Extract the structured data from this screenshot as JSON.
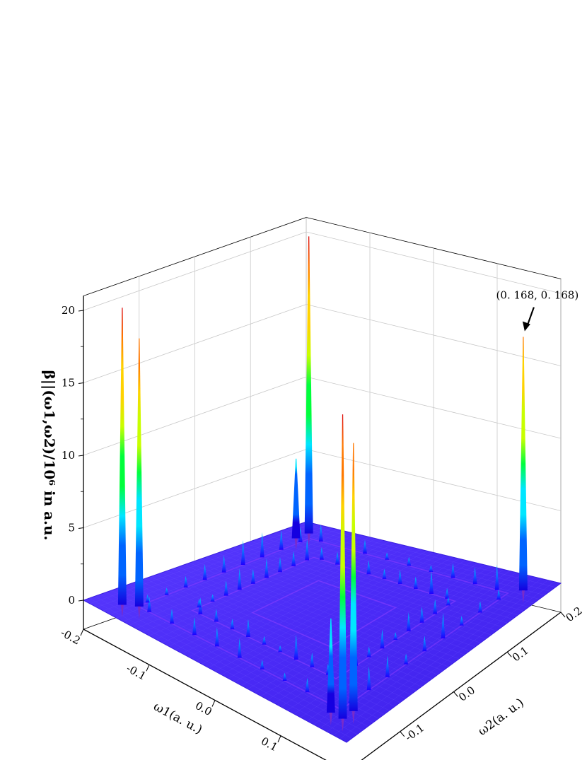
{
  "chart_data": {
    "type": "surface",
    "title": "",
    "xlabel": "ω1(a. u.)",
    "ylabel": "ω2(a. u.)",
    "zlabel": "β||(ω1,ω2)/10⁶ in a.u.",
    "xlim": [
      -0.2,
      0.2
    ],
    "ylim": [
      -0.2,
      0.2
    ],
    "zlim": [
      -2,
      21
    ],
    "x_ticks": [
      "-0.2",
      "-0.1",
      "0.0",
      "0.1",
      "0.2"
    ],
    "y_ticks": [
      "-0.2",
      "-0.1",
      "0.0",
      "0.1",
      "0.2"
    ],
    "z_ticks": [
      "0",
      "5",
      "10",
      "15",
      "20"
    ],
    "grid": true,
    "colormap": [
      "#1400e0",
      "#0064ff",
      "#00e6ff",
      "#00ff3c",
      "#c8ff00",
      "#ffd200",
      "#ff7800",
      "#dc0000"
    ],
    "surface_color": "#4b2bff",
    "peaks": [
      {
        "x": 0.168,
        "y": 0.168,
        "z": 17.5
      },
      {
        "x": -0.168,
        "y": -0.168,
        "z": 20.5
      },
      {
        "x": -0.154,
        "y": -0.154,
        "z": 18.5
      },
      {
        "x": 0.168,
        "y": -0.168,
        "z": 21.0
      },
      {
        "x": -0.168,
        "y": 0.168,
        "z": 20.5
      },
      {
        "x": 0.168,
        "y": -0.148,
        "z": 18.5
      },
      {
        "x": 0.15,
        "y": -0.168,
        "z": 6.5
      },
      {
        "x": -0.168,
        "y": 0.145,
        "z": 5.5
      }
    ],
    "annotations": [
      {
        "text": "(0. 168,  0. 168)",
        "x": 0.168,
        "y": 0.168
      }
    ]
  }
}
